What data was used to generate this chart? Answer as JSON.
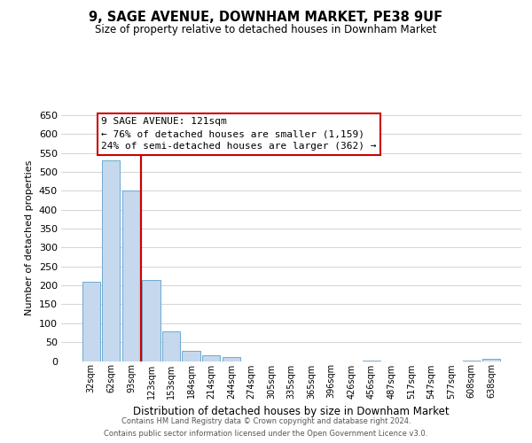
{
  "title": "9, SAGE AVENUE, DOWNHAM MARKET, PE38 9UF",
  "subtitle": "Size of property relative to detached houses in Downham Market",
  "xlabel": "Distribution of detached houses by size in Downham Market",
  "ylabel": "Number of detached properties",
  "footer_line1": "Contains HM Land Registry data © Crown copyright and database right 2024.",
  "footer_line2": "Contains public sector information licensed under the Open Government Licence v3.0.",
  "bin_labels": [
    "32sqm",
    "62sqm",
    "93sqm",
    "123sqm",
    "153sqm",
    "184sqm",
    "214sqm",
    "244sqm",
    "274sqm",
    "305sqm",
    "335sqm",
    "365sqm",
    "396sqm",
    "426sqm",
    "456sqm",
    "487sqm",
    "517sqm",
    "547sqm",
    "577sqm",
    "608sqm",
    "638sqm"
  ],
  "bar_values": [
    210,
    530,
    450,
    215,
    78,
    28,
    15,
    10,
    0,
    0,
    0,
    0,
    0,
    0,
    2,
    0,
    0,
    0,
    0,
    2,
    5
  ],
  "bar_color": "#c5d8ed",
  "bar_edge_color": "#6fa8d0",
  "property_label": "9 SAGE AVENUE: 121sqm",
  "annotation_line1": "← 76% of detached houses are smaller (1,159)",
  "annotation_line2": "24% of semi-detached houses are larger (362) →",
  "vline_color": "#cc0000",
  "box_edge_color": "#cc0000",
  "ylim": [
    0,
    650
  ],
  "yticks": [
    0,
    50,
    100,
    150,
    200,
    250,
    300,
    350,
    400,
    450,
    500,
    550,
    600,
    650
  ],
  "background_color": "#ffffff",
  "grid_color": "#cccccc"
}
